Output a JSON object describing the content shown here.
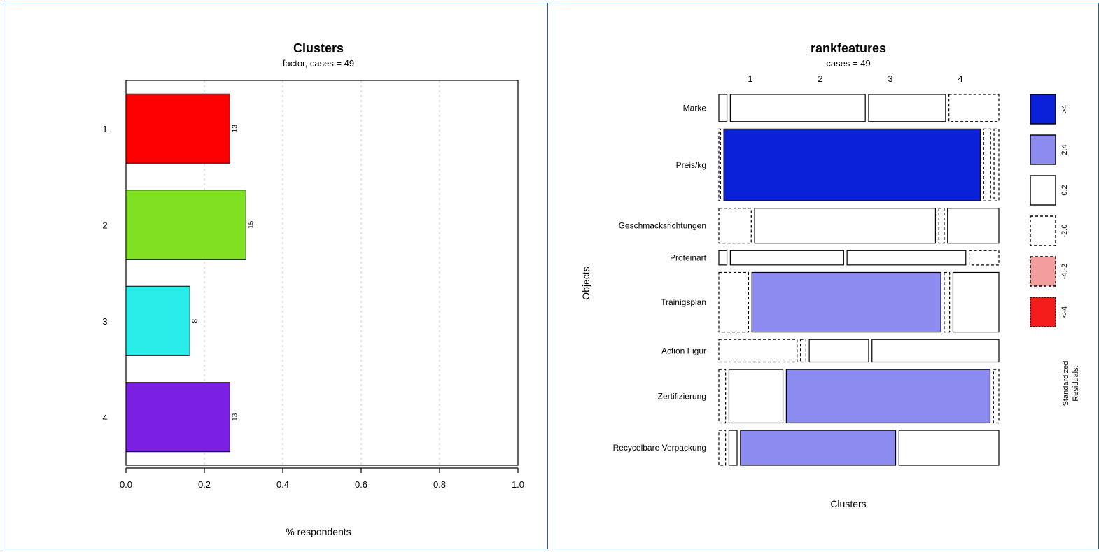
{
  "left_chart": {
    "type": "bar-horizontal",
    "title": "Clusters",
    "subtitle": "factor, cases = 49",
    "xlabel": "% respondents",
    "xlim": [
      0.0,
      1.0
    ],
    "xtick_step": 0.2,
    "xticks": [
      "0.0",
      "0.2",
      "0.4",
      "0.6",
      "0.8",
      "1.0"
    ],
    "grid_dash": "3,4",
    "grid_color": "#d7d7d7",
    "plot_border_color": "#000000",
    "bars": [
      {
        "category": "1",
        "value": 0.265,
        "count": "13",
        "color": "#ff0000"
      },
      {
        "category": "2",
        "value": 0.306,
        "count": "15",
        "color": "#7fe121"
      },
      {
        "category": "3",
        "value": 0.163,
        "count": "8",
        "color": "#29ECE9"
      },
      {
        "category": "4",
        "value": 0.265,
        "count": "13",
        "color": "#7b1fe3"
      }
    ]
  },
  "right_chart": {
    "type": "mosaic",
    "title": "rankfeatures",
    "subtitle": "cases = 49",
    "xlabel": "Clusters",
    "ylabel": "Objects",
    "x_categories": [
      "1",
      "2",
      "3",
      "4"
    ],
    "row_gap": 0.02,
    "col_gap": 0.012,
    "objects": [
      {
        "label": "Marke",
        "height": 0.066,
        "cells": [
          {
            "width": 0.03,
            "residual": "0:2"
          },
          {
            "width": 0.5,
            "residual": "0:2"
          },
          {
            "width": 0.285,
            "residual": "0:2"
          },
          {
            "width": 0.185,
            "residual": "-2:0"
          }
        ]
      },
      {
        "label": "Preis/kg",
        "height": 0.175,
        "cells": [
          {
            "width": 0.006,
            "residual": "-2:0"
          },
          {
            "width": 0.95,
            "residual": ">4"
          },
          {
            "width": 0.026,
            "residual": "-2:0"
          },
          {
            "width": 0.018,
            "residual": "-2:0"
          }
        ]
      },
      {
        "label": "Geschmacksrichtungen",
        "height": 0.085,
        "cells": [
          {
            "width": 0.12,
            "residual": "-2:0"
          },
          {
            "width": 0.67,
            "residual": "0:2"
          },
          {
            "width": 0.02,
            "residual": "-2:0"
          },
          {
            "width": 0.19,
            "residual": "0:2"
          }
        ]
      },
      {
        "label": "Proteinart",
        "height": 0.035,
        "cells": [
          {
            "width": 0.03,
            "residual": "0:2"
          },
          {
            "width": 0.42,
            "residual": "0:2"
          },
          {
            "width": 0.44,
            "residual": "0:2"
          },
          {
            "width": 0.11,
            "residual": "-2:0"
          }
        ]
      },
      {
        "label": "Trainigsplan",
        "height": 0.145,
        "cells": [
          {
            "width": 0.11,
            "residual": "-2:0"
          },
          {
            "width": 0.7,
            "residual": "2:4"
          },
          {
            "width": 0.02,
            "residual": "-2:0"
          },
          {
            "width": 0.17,
            "residual": "0:2"
          }
        ]
      },
      {
        "label": "Action Figur",
        "height": 0.055,
        "cells": [
          {
            "width": 0.29,
            "residual": "-2:0"
          },
          {
            "width": 0.02,
            "residual": "-2:0"
          },
          {
            "width": 0.22,
            "residual": "0:2"
          },
          {
            "width": 0.47,
            "residual": "0:2"
          }
        ]
      },
      {
        "label": "Zertifizierung",
        "height": 0.13,
        "cells": [
          {
            "width": 0.025,
            "residual": "-2:0"
          },
          {
            "width": 0.2,
            "residual": "0:2"
          },
          {
            "width": 0.755,
            "residual": "2:4"
          },
          {
            "width": 0.02,
            "residual": "-2:0"
          }
        ]
      },
      {
        "label": "Recycelbare Verpackung",
        "height": 0.085,
        "cells": [
          {
            "width": 0.025,
            "residual": "-2:0"
          },
          {
            "width": 0.03,
            "residual": "0:2"
          },
          {
            "width": 0.575,
            "residual": "2:4"
          },
          {
            "width": 0.37,
            "residual": "0:2"
          }
        ]
      }
    ],
    "legend": {
      "title": "Standardized\nResiduals:",
      "items": [
        {
          "label": ">4",
          "fill": "#0a21d9",
          "stroke": "#000000",
          "dash": "none"
        },
        {
          "label": "2:4",
          "fill": "#8b8bf0",
          "stroke": "#000000",
          "dash": "none"
        },
        {
          "label": "0:2",
          "fill": "#ffffff",
          "stroke": "#000000",
          "dash": "none"
        },
        {
          "label": "-2:0",
          "fill": "#ffffff",
          "stroke": "#000000",
          "dash": "4,3"
        },
        {
          "label": "-4:-2",
          "fill": "#f29e9e",
          "stroke": "#000000",
          "dash": "4,3"
        },
        {
          "label": "<-4",
          "fill": "#f51c1c",
          "stroke": "#000000",
          "dash": "2,2"
        }
      ]
    }
  },
  "residual_style": {
    ">4": {
      "fill": "#0a21d9",
      "stroke": "#000000",
      "dash": "none"
    },
    "2:4": {
      "fill": "#8b8bf0",
      "stroke": "#000000",
      "dash": "none"
    },
    "0:2": {
      "fill": "#ffffff",
      "stroke": "#000000",
      "dash": "none"
    },
    "-2:0": {
      "fill": "#ffffff",
      "stroke": "#000000",
      "dash": "4,3"
    },
    "-4:-2": {
      "fill": "#f29e9e",
      "stroke": "#000000",
      "dash": "4,3"
    },
    "<-4": {
      "fill": "#f51c1c",
      "stroke": "#000000",
      "dash": "2,2"
    }
  }
}
